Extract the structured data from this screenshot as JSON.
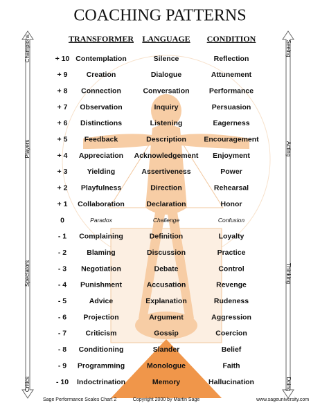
{
  "header": {
    "title": "COACHING PATTERNS",
    "columns": [
      "TRANSFORMER",
      "LANGUAGE",
      "CONDITION"
    ]
  },
  "left_scale": [
    "Champions",
    "Players",
    "Spectators",
    "Critics"
  ],
  "right_scale": [
    "Seeing",
    "Acting",
    "Thinking",
    "Doing"
  ],
  "rows": [
    [
      "+ 10",
      "Contemplation",
      "Silence",
      "Reflection"
    ],
    [
      "+ 9",
      "Creation",
      "Dialogue",
      "Attunement"
    ],
    [
      "+ 8",
      "Connection",
      "Conversation",
      "Performance"
    ],
    [
      "+ 7",
      "Observation",
      "Inquiry",
      "Persuasion"
    ],
    [
      "+ 6",
      "Distinctions",
      "Listening",
      "Eagerness"
    ],
    [
      "+ 5",
      "Feedback",
      "Description",
      "Encouragement"
    ],
    [
      "+ 4",
      "Appreciation",
      "Acknowledgement",
      "Enjoyment"
    ],
    [
      "+ 3",
      "Yielding",
      "Assertiveness",
      "Power"
    ],
    [
      "+ 2",
      "Playfulness",
      "Direction",
      "Rehearsal"
    ],
    [
      "+ 1",
      "Collaboration",
      "Declaration",
      "Honor"
    ],
    [
      "0",
      "Paradox",
      "Challenge",
      "Confusion"
    ],
    [
      "- 1",
      "Complaining",
      "Definition",
      "Loyalty"
    ],
    [
      "- 2",
      "Blaming",
      "Discussion",
      "Practice"
    ],
    [
      "- 3",
      "Negotiation",
      "Debate",
      "Control"
    ],
    [
      "- 4",
      "Punishment",
      "Accusation",
      "Revenge"
    ],
    [
      "- 5",
      "Advice",
      "Explanation",
      "Rudeness"
    ],
    [
      "- 6",
      "Projection",
      "Argument",
      "Aggression"
    ],
    [
      "- 7",
      "Criticism",
      "Gossip",
      "Coercion"
    ],
    [
      "- 8",
      "Conditioning",
      "Slander",
      "Belief"
    ],
    [
      "- 9",
      "Programming",
      "Monologue",
      "Faith"
    ],
    [
      "- 10",
      "Indoctrination",
      "Memory",
      "Hallucination"
    ]
  ],
  "footer": [
    "Sage Performance Scales  Chart 2",
    "Copyright 2000 by Martin Sage",
    "www.sageuniversity.com"
  ]
}
